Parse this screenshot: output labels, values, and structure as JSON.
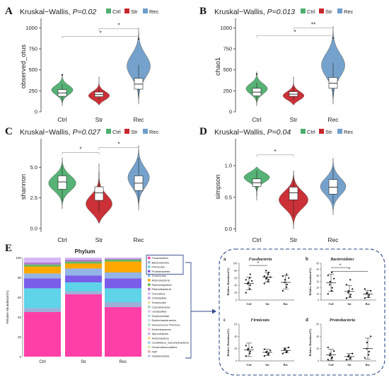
{
  "colors": {
    "Ctrl": "#4daf6e",
    "Str": "#c8262c",
    "Rec": "#6e9dc9"
  },
  "legend": [
    "Ctrl",
    "Str",
    "Rec"
  ],
  "violins": [
    {
      "label": "A",
      "stat": "Kruskal−Wallis, ",
      "p": "P=0.02",
      "ylabel": "observed_otus",
      "yticks": [
        0,
        250,
        500,
        750,
        1000
      ],
      "ylim": [
        0,
        1080
      ],
      "groups": [
        {
          "name": "Ctrl",
          "min": 70,
          "q1": 185,
          "median": 225,
          "q3": 265,
          "max": 450,
          "wmin": 120,
          "wmax": 330,
          "width": 0.55,
          "shape": "mid",
          "dots": [
            440
          ]
        },
        {
          "name": "Str",
          "min": 80,
          "q1": 180,
          "median": 205,
          "q3": 235,
          "max": 420,
          "wmin": 140,
          "wmax": 290,
          "width": 0.6,
          "shape": "low",
          "dots": []
        },
        {
          "name": "Rec",
          "min": 90,
          "q1": 270,
          "median": 330,
          "q3": 400,
          "max": 1000,
          "wmin": 160,
          "wmax": 560,
          "width": 0.6,
          "shape": "mid",
          "dots": [
            870
          ]
        }
      ],
      "sig": [
        {
          "from": "Ctrl",
          "to": "Rec",
          "y": 900,
          "text": "*"
        },
        {
          "from": "Str",
          "to": "Rec",
          "y": 990,
          "text": "*"
        }
      ]
    },
    {
      "label": "B",
      "stat": "Kruskal−Wallis, ",
      "p": "P=0.013",
      "ylabel": "chao1",
      "yticks": [
        0,
        250,
        500,
        750,
        1000
      ],
      "ylim": [
        0,
        1080
      ],
      "groups": [
        {
          "name": "Ctrl",
          "min": 70,
          "q1": 190,
          "median": 235,
          "q3": 280,
          "max": 480,
          "wmin": 120,
          "wmax": 350,
          "width": 0.55,
          "shape": "mid",
          "dots": [
            450
          ]
        },
        {
          "name": "Str",
          "min": 80,
          "q1": 185,
          "median": 210,
          "q3": 240,
          "max": 420,
          "wmin": 140,
          "wmax": 300,
          "width": 0.6,
          "shape": "low",
          "dots": []
        },
        {
          "name": "Rec",
          "min": 90,
          "q1": 280,
          "median": 340,
          "q3": 410,
          "max": 1020,
          "wmin": 170,
          "wmax": 580,
          "width": 0.6,
          "shape": "mid",
          "dots": [
            880
          ]
        }
      ],
      "sig": [
        {
          "from": "Ctrl",
          "to": "Rec",
          "y": 910,
          "text": "*"
        },
        {
          "from": "Str",
          "to": "Rec",
          "y": 1000,
          "text": "**"
        }
      ]
    },
    {
      "label": "C",
      "stat": "Kruskal−Wallis, ",
      "p": "P=0.027",
      "ylabel": "shannon",
      "yticks": [
        0.0,
        2.5,
        5.0
      ],
      "ylim": [
        -0.3,
        7.1
      ],
      "groups": [
        {
          "name": "Ctrl",
          "min": 1.6,
          "q1": 3.2,
          "median": 3.8,
          "q3": 4.3,
          "max": 5.8,
          "wmin": 2.2,
          "wmax": 5.2,
          "width": 0.7,
          "shape": "mid",
          "dots": []
        },
        {
          "name": "Str",
          "min": 0.4,
          "q1": 2.3,
          "median": 2.9,
          "q3": 3.4,
          "max": 5.3,
          "wmin": 1.3,
          "wmax": 4.6,
          "width": 0.75,
          "shape": "low",
          "dots": []
        },
        {
          "name": "Rec",
          "min": 1.5,
          "q1": 3.1,
          "median": 3.7,
          "q3": 4.3,
          "max": 6.8,
          "wmin": 2.0,
          "wmax": 5.8,
          "width": 0.55,
          "shape": "mid",
          "dots": []
        }
      ],
      "sig": [
        {
          "from": "Ctrl",
          "to": "Str",
          "y": 6.2,
          "text": "*"
        },
        {
          "from": "Str",
          "to": "Rec",
          "y": 6.6,
          "text": "*"
        }
      ]
    },
    {
      "label": "D",
      "stat": "Kruskal−Wallis, ",
      "p": "P=0.04",
      "ylabel": "simpson",
      "yticks": [
        0.0,
        0.5,
        1.0
      ],
      "ylim": [
        -0.05,
        1.38
      ],
      "groups": [
        {
          "name": "Ctrl",
          "min": 0.45,
          "q1": 0.67,
          "median": 0.73,
          "q3": 0.79,
          "max": 0.98,
          "wmin": 0.52,
          "wmax": 0.92,
          "width": 0.75,
          "shape": "high",
          "dots": []
        },
        {
          "name": "Str",
          "min": 0.0,
          "q1": 0.46,
          "median": 0.57,
          "q3": 0.66,
          "max": 0.92,
          "wmin": 0.2,
          "wmax": 0.85,
          "width": 0.75,
          "shape": "mid",
          "dots": []
        },
        {
          "name": "Rec",
          "min": 0.22,
          "q1": 0.55,
          "median": 0.66,
          "q3": 0.78,
          "max": 1.12,
          "wmin": 0.4,
          "wmax": 0.97,
          "width": 0.65,
          "shape": "mid",
          "dots": []
        }
      ],
      "sig": [
        {
          "from": "Ctrl",
          "to": "Str",
          "y": 1.17,
          "text": "*"
        }
      ]
    }
  ],
  "stacked": {
    "label": "E",
    "title": "Phylum",
    "ylabel": "Relative Abundance(%)",
    "yticks": [
      0,
      20,
      40,
      60,
      80,
      100
    ],
    "categories": [
      "Ctrl",
      "Str",
      "Rec"
    ],
    "legend": [
      "Fusobacteria",
      "Bacteroidetes",
      "Firmicutes",
      "Proteobacteria",
      "Tenericutes",
      "Actinobacteria",
      "Planctomycetes",
      "Patescibacteria",
      "Chloroflexi",
      "Chlamydiae",
      "Tenericutes",
      "Cyanobacteria",
      "unclassified",
      "Dependentiae",
      "Epsilonbacteraeota",
      "Deinococcus-Thermus",
      "Deferribacteres",
      "Spirochaetes",
      "Acidobacteria",
      "Candidatus_Saccharibacteria",
      "Gemmatimonadetes",
      "FBP",
      "Gastobacteria"
    ],
    "series": [
      {
        "name": "Fusobacteria",
        "color": "#ff3fa8",
        "values": [
          45,
          63,
          50
        ]
      },
      {
        "name": "Bacteroidetes",
        "color": "#9bb0d8",
        "values": [
          4,
          3,
          5
        ]
      },
      {
        "name": "Firmicutes",
        "color": "#5fd3e8",
        "values": [
          20,
          9,
          14
        ]
      },
      {
        "name": "Proteobacteria",
        "color": "#7a5de8",
        "values": [
          10,
          7,
          10
        ]
      },
      {
        "name": "Tenericutes",
        "color": "#93b4e6",
        "values": [
          5,
          7,
          6
        ]
      },
      {
        "name": "Actinobacteria",
        "color": "#ffa800",
        "values": [
          7,
          5,
          11
        ]
      },
      {
        "name": "Planctomycetes",
        "color": "#5fb85f",
        "values": [
          2,
          2,
          2
        ]
      },
      {
        "name": "Patescibacteria",
        "color": "#b27acc",
        "values": [
          2,
          2,
          1
        ]
      },
      {
        "name": "Chloroflexi",
        "color": "#d6b8f5",
        "values": [
          5,
          2,
          1
        ]
      }
    ]
  },
  "small": [
    {
      "label": "a",
      "title": "Fusobacteria",
      "ylabel": "Relative Abundance(%)",
      "ylim": [
        0,
        100
      ],
      "yticks": [
        0,
        20,
        40,
        60,
        80,
        100
      ],
      "groups": [
        {
          "name": "Ctrl",
          "mean": 45,
          "sd": 17,
          "pts": [
            20,
            30,
            40,
            44,
            48,
            52,
            55,
            60,
            70
          ]
        },
        {
          "name": "Str",
          "mean": 62,
          "sd": 13,
          "pts": [
            45,
            50,
            55,
            58,
            60,
            62,
            65,
            70,
            75,
            80
          ]
        },
        {
          "name": "Rec",
          "mean": 48,
          "sd": 18,
          "pts": [
            25,
            35,
            42,
            48,
            55,
            60,
            65,
            70
          ]
        }
      ],
      "sig": [
        {
          "from": "Ctrl",
          "to": "Str",
          "y": 94,
          "text": "*"
        }
      ]
    },
    {
      "label": "b",
      "title": "Bacteroidetes",
      "ylabel": "Relative Abundance(%)",
      "ylim": [
        0,
        60
      ],
      "yticks": [
        0,
        10,
        20,
        30,
        40,
        50,
        60
      ],
      "groups": [
        {
          "name": "Ctrl",
          "mean": 28,
          "sd": 14,
          "pts": [
            10,
            15,
            20,
            25,
            30,
            35,
            40,
            45
          ]
        },
        {
          "name": "Str",
          "mean": 14,
          "sd": 10,
          "pts": [
            3,
            6,
            9,
            12,
            15,
            18,
            25,
            33
          ]
        },
        {
          "name": "Rec",
          "mean": 10,
          "sd": 6,
          "pts": [
            3,
            5,
            8,
            10,
            12,
            15,
            18
          ]
        }
      ],
      "sig": [
        {
          "from": "Ctrl",
          "to": "Str",
          "y": 53,
          "text": "*"
        },
        {
          "from": "Ctrl",
          "to": "Rec",
          "y": 47,
          "text": "*"
        }
      ]
    },
    {
      "label": "c",
      "title": "Firmicutes",
      "ylabel": "Relative Abundance(%)",
      "ylim": [
        0,
        60
      ],
      "yticks": [
        0,
        20,
        40,
        60
      ],
      "groups": [
        {
          "name": "Ctrl",
          "mean": 18,
          "sd": 11,
          "pts": [
            8,
            12,
            15,
            18,
            20,
            22,
            25
          ]
        },
        {
          "name": "Str",
          "mean": 14,
          "sd": 5,
          "pts": [
            8,
            10,
            12,
            14,
            15,
            17,
            19
          ]
        },
        {
          "name": "Rec",
          "mean": 17,
          "sd": 4,
          "pts": [
            12,
            14,
            16,
            18,
            20,
            22
          ]
        }
      ],
      "sig": []
    },
    {
      "label": "d",
      "title": "Proteobacteria",
      "ylabel": "Relative Abundance(%)",
      "ylim": [
        0,
        60
      ],
      "yticks": [
        0,
        20,
        40,
        60
      ],
      "groups": [
        {
          "name": "Ctrl",
          "mean": 10,
          "sd": 9,
          "pts": [
            2,
            4,
            6,
            9,
            12,
            16,
            22
          ]
        },
        {
          "name": "Str",
          "mean": 7,
          "sd": 5,
          "pts": [
            2,
            4,
            5,
            7,
            9,
            12
          ]
        },
        {
          "name": "Rec",
          "mean": 20,
          "sd": 17,
          "pts": [
            5,
            10,
            15,
            20,
            30,
            40
          ]
        }
      ],
      "sig": []
    }
  ]
}
